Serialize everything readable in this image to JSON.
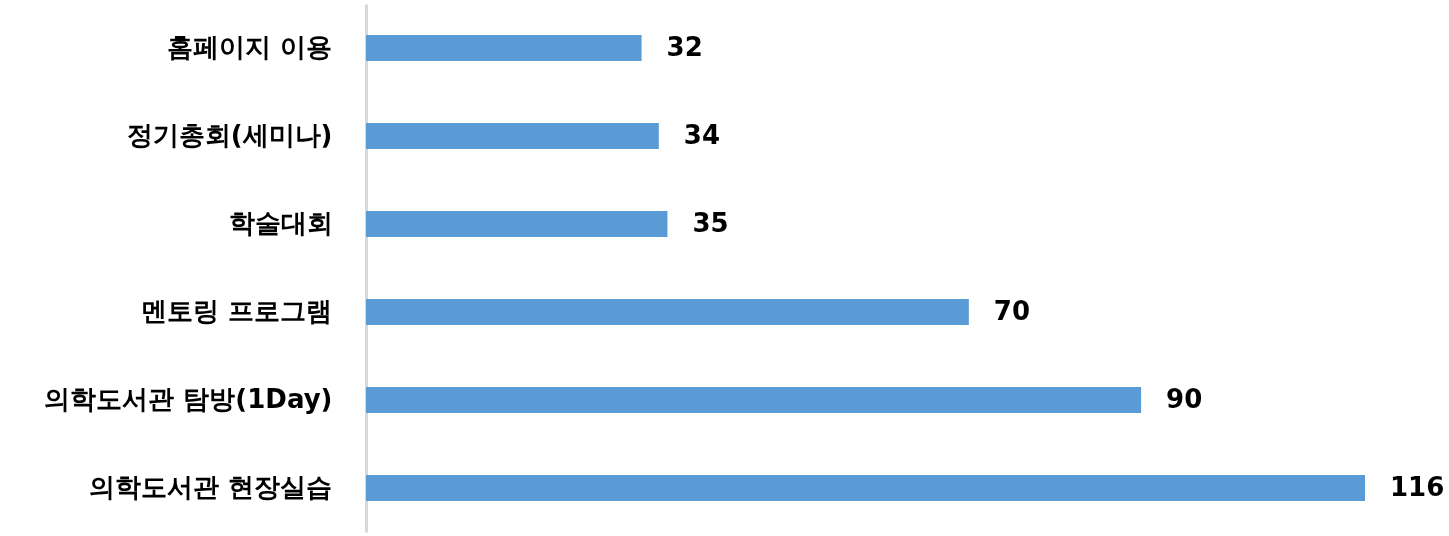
{
  "chart_data": {
    "type": "bar",
    "orientation": "horizontal",
    "categories": [
      "홈페이지 이용",
      "정기총회(세미나)",
      "학술대회",
      "멘토링 프로그램",
      "의학도서관 탐방(1Day)",
      "의학도서관 현장실습"
    ],
    "values": [
      32,
      34,
      35,
      70,
      90,
      116
    ],
    "color": "#5b9bd5",
    "data_labels": true,
    "tick_labels": "y",
    "grid": false
  }
}
